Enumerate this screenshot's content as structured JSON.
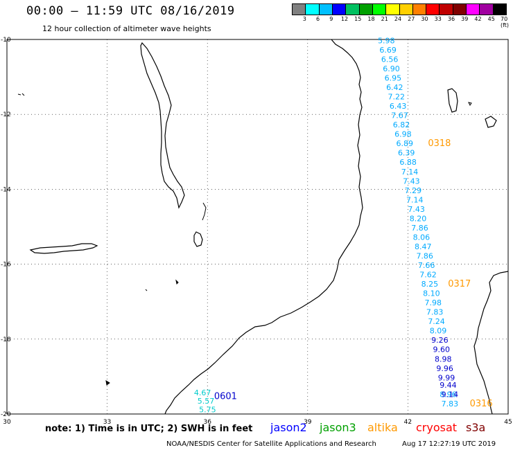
{
  "header": {
    "title": "00:00 – 11:59 UTC 08/16/2019",
    "subtitle": "12 hour collection of altimeter wave heights"
  },
  "legend": {
    "colors": [
      "#808080",
      "#00ffff",
      "#00c0ff",
      "#0000ff",
      "#00c060",
      "#00a000",
      "#00ff00",
      "#ffff00",
      "#ffd000",
      "#ff8000",
      "#ff0000",
      "#c00000",
      "#800000",
      "#ff00ff",
      "#a000a0",
      "#000000"
    ],
    "labels": [
      "3",
      "6",
      "9",
      "12",
      "15",
      "18",
      "21",
      "24",
      "27",
      "30",
      "33",
      "36",
      "39",
      "42",
      "45",
      "70 (ft)"
    ]
  },
  "axes": {
    "lat_ticks": [
      "-10",
      "-12",
      "-14",
      "-16",
      "-18",
      "-20"
    ],
    "lon_ticks": [
      "30",
      "33",
      "36",
      "39",
      "42",
      "45"
    ]
  },
  "chart_data": {
    "type": "scatter",
    "x_range": [
      30,
      45
    ],
    "y_range": [
      -20,
      -10
    ],
    "series": [
      {
        "color": "#00aaff",
        "passes": [
          "0318",
          "0317"
        ],
        "pass_color": "#ff9900",
        "points": [
          {
            "lon": 41.1,
            "lat": -10.1,
            "value": "5.98"
          },
          {
            "lon": 41.15,
            "lat": -10.35,
            "value": "6.69"
          },
          {
            "lon": 41.2,
            "lat": -10.6,
            "value": "6.56"
          },
          {
            "lon": 41.25,
            "lat": -10.85,
            "value": "6.90"
          },
          {
            "lon": 41.3,
            "lat": -11.1,
            "value": "6.95"
          },
          {
            "lon": 41.35,
            "lat": -11.35,
            "value": "6.42"
          },
          {
            "lon": 41.4,
            "lat": -11.6,
            "value": "7.22"
          },
          {
            "lon": 41.45,
            "lat": -11.85,
            "value": "6.43"
          },
          {
            "lon": 41.5,
            "lat": -12.1,
            "value": "7.67"
          },
          {
            "lon": 41.55,
            "lat": -12.35,
            "value": "6.82"
          },
          {
            "lon": 41.6,
            "lat": -12.6,
            "value": "6.98"
          },
          {
            "lon": 41.65,
            "lat": -12.85,
            "value": "6.89"
          },
          {
            "lon": 41.7,
            "lat": -13.1,
            "value": "6.39"
          },
          {
            "lon": 41.75,
            "lat": -13.35,
            "value": "6.88"
          },
          {
            "lon": 41.8,
            "lat": -13.6,
            "value": "7.14"
          },
          {
            "lon": 41.85,
            "lat": -13.85,
            "value": "7.43"
          },
          {
            "lon": 41.9,
            "lat": -14.1,
            "value": "7.29"
          },
          {
            "lon": 41.95,
            "lat": -14.35,
            "value": "7.14"
          },
          {
            "lon": 42.0,
            "lat": -14.6,
            "value": "7.43"
          },
          {
            "lon": 42.05,
            "lat": -14.85,
            "value": "8.20"
          },
          {
            "lon": 42.1,
            "lat": -15.1,
            "value": "7.86"
          },
          {
            "lon": 42.15,
            "lat": -15.35,
            "value": "8.06"
          },
          {
            "lon": 42.2,
            "lat": -15.6,
            "value": "8.47"
          },
          {
            "lon": 42.25,
            "lat": -15.85,
            "value": "7.86"
          },
          {
            "lon": 42.3,
            "lat": -16.1,
            "value": "7.66"
          },
          {
            "lon": 42.35,
            "lat": -16.35,
            "value": "7.62"
          },
          {
            "lon": 42.4,
            "lat": -16.6,
            "value": "8.25"
          },
          {
            "lon": 42.45,
            "lat": -16.85,
            "value": "8.10"
          },
          {
            "lon": 42.5,
            "lat": -17.1,
            "value": "7.98"
          },
          {
            "lon": 42.55,
            "lat": -17.35,
            "value": "7.83"
          },
          {
            "lon": 42.6,
            "lat": -17.6,
            "value": "7.24"
          },
          {
            "lon": 42.65,
            "lat": -17.85,
            "value": "8.09"
          },
          {
            "lon": 42.95,
            "lat": -19.55,
            "value": "8.96"
          },
          {
            "lon": 43.0,
            "lat": -19.8,
            "value": "7.83"
          }
        ]
      },
      {
        "color": "#0000cc",
        "passes": [
          "0601"
        ],
        "pass_color": "#0000cc",
        "points": [
          {
            "lon": 42.7,
            "lat": -18.1,
            "value": "9.26"
          },
          {
            "lon": 42.75,
            "lat": -18.35,
            "value": "9.60"
          },
          {
            "lon": 42.8,
            "lat": -18.6,
            "value": "8.98"
          },
          {
            "lon": 42.85,
            "lat": -18.85,
            "value": "9.96"
          },
          {
            "lon": 42.9,
            "lat": -19.1,
            "value": "9.99"
          },
          {
            "lon": 42.95,
            "lat": -19.3,
            "value": "9.44"
          },
          {
            "lon": 43.0,
            "lat": -19.55,
            "value": "9.14"
          }
        ]
      },
      {
        "color": "#00cccc",
        "passes": [],
        "points": [
          {
            "lon": 35.6,
            "lat": -19.5,
            "value": "4.67"
          },
          {
            "lon": 35.7,
            "lat": -19.72,
            "value": "5.57"
          },
          {
            "lon": 35.75,
            "lat": -19.95,
            "value": "5.75"
          }
        ]
      }
    ],
    "pass_labels": [
      {
        "text": "0318",
        "lon": 42.6,
        "lat": -12.85,
        "color": "#ff9900"
      },
      {
        "text": "0317",
        "lon": 43.2,
        "lat": -16.6,
        "color": "#ff9900"
      },
      {
        "text": "0316",
        "lon": 43.85,
        "lat": -19.8,
        "color": "#ff9900"
      },
      {
        "text": "0601",
        "lon": 36.2,
        "lat": -19.6,
        "color": "#0000cc"
      }
    ]
  },
  "footer": {
    "note": "note: 1) Time is in UTC; 2) SWH is in feet",
    "satellites": [
      {
        "name": "jason2",
        "color": "#0000ff"
      },
      {
        "name": "jason3",
        "color": "#00a000"
      },
      {
        "name": "altika",
        "color": "#ff9900"
      },
      {
        "name": "cryosat",
        "color": "#ff0000"
      },
      {
        "name": "s3a",
        "color": "#800000"
      }
    ],
    "credit": "NOAA/NESDIS Center for Satellite Applications and Research",
    "timestamp": "Aug 17 12:27:19 UTC 2019"
  }
}
